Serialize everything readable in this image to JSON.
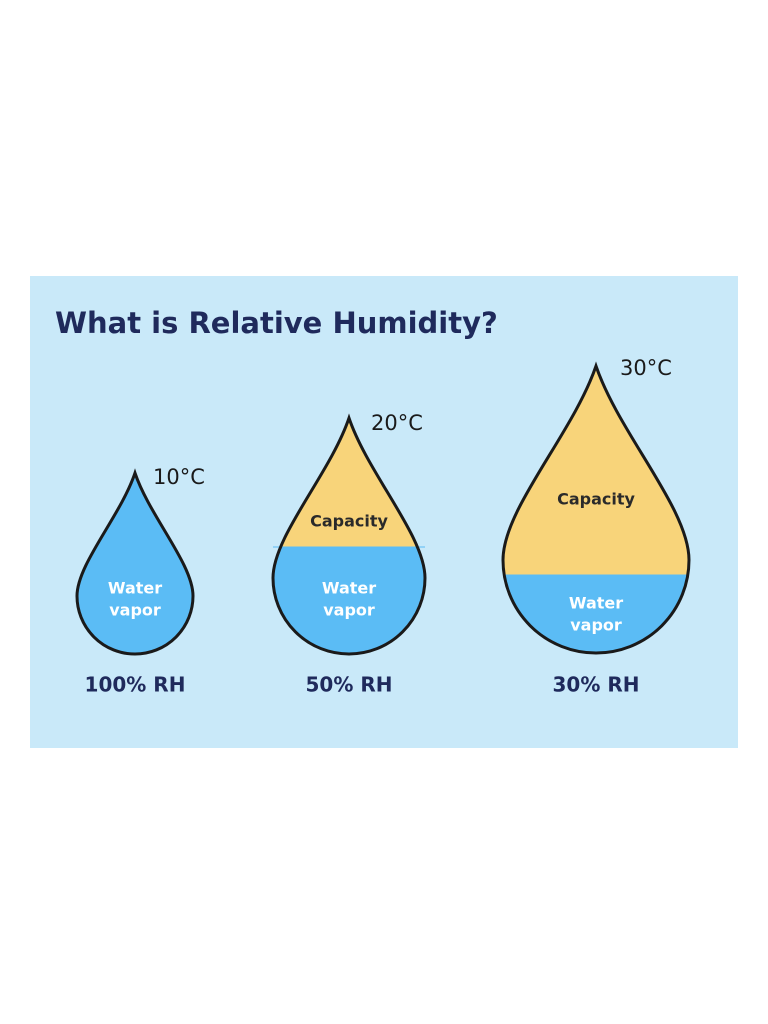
{
  "title": "What is Relative Humidity?",
  "drops": [
    {
      "temperature": "10°C",
      "vapor": [
        "Water",
        "vapor"
      ],
      "rh": "100% RH"
    },
    {
      "temperature": "20°C",
      "capacity": "Capacity",
      "vapor": [
        "Water",
        "vapor"
      ],
      "rh": "50% RH"
    },
    {
      "temperature": "30°C",
      "capacity": "Capacity",
      "vapor": [
        "Water",
        "vapor"
      ],
      "rh": "30% RH"
    }
  ]
}
